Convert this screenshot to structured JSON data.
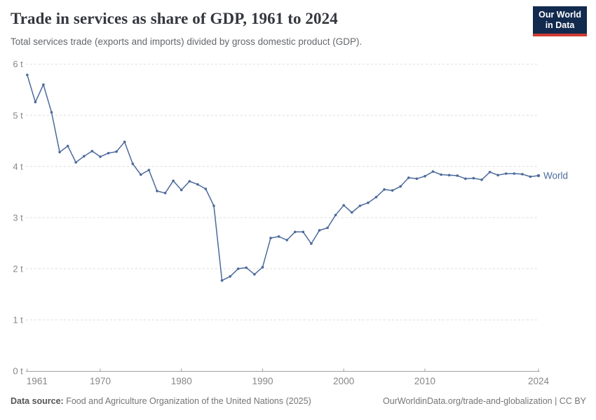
{
  "header": {
    "title": "Trade in services as share of GDP, 1961 to 2024",
    "subtitle": "Total services trade (exports and imports) divided by gross domestic product (GDP).",
    "logo_line1": "Our World",
    "logo_line2": "in Data"
  },
  "footer": {
    "source_label": "Data source:",
    "source_text": "Food and Agriculture Organization of the United Nations (2025)",
    "link_text": "OurWorldinData.org/trade-and-globalization | CC BY"
  },
  "chart_data": {
    "type": "line",
    "title": "Trade in services as share of GDP, 1961 to 2024",
    "xlabel": "",
    "ylabel": "",
    "xlim": [
      1961,
      2024
    ],
    "ylim": [
      0,
      6
    ],
    "grid": "horizontal-dashed",
    "legend_position": "end-of-line",
    "y_suffix": " t",
    "y_ticks": [
      {
        "v": 0,
        "label": "0 t"
      },
      {
        "v": 1,
        "label": "1 t"
      },
      {
        "v": 2,
        "label": "2 t"
      },
      {
        "v": 3,
        "label": "3 t"
      },
      {
        "v": 4,
        "label": "4 t"
      },
      {
        "v": 5,
        "label": "5 t"
      },
      {
        "v": 6,
        "label": "6 t"
      }
    ],
    "x_ticks": [
      {
        "v": 1961,
        "label": "1961"
      },
      {
        "v": 1970,
        "label": "1970"
      },
      {
        "v": 1980,
        "label": "1980"
      },
      {
        "v": 1990,
        "label": "1990"
      },
      {
        "v": 2000,
        "label": "2000"
      },
      {
        "v": 2010,
        "label": "2010"
      },
      {
        "v": 2024,
        "label": "2024"
      }
    ],
    "series": [
      {
        "name": "World",
        "x": [
          1961,
          1962,
          1963,
          1964,
          1965,
          1966,
          1967,
          1968,
          1969,
          1970,
          1971,
          1972,
          1973,
          1974,
          1975,
          1976,
          1977,
          1978,
          1979,
          1980,
          1981,
          1982,
          1983,
          1984,
          1985,
          1986,
          1987,
          1988,
          1989,
          1990,
          1991,
          1992,
          1993,
          1994,
          1995,
          1996,
          1997,
          1998,
          1999,
          2000,
          2001,
          2002,
          2003,
          2004,
          2005,
          2006,
          2007,
          2008,
          2009,
          2010,
          2011,
          2012,
          2013,
          2014,
          2015,
          2016,
          2017,
          2018,
          2019,
          2020,
          2021,
          2022,
          2023,
          2024
        ],
        "values": [
          5.79,
          5.26,
          5.6,
          5.06,
          4.28,
          4.4,
          4.08,
          4.2,
          4.3,
          4.19,
          4.26,
          4.29,
          4.48,
          4.05,
          3.84,
          3.93,
          3.52,
          3.48,
          3.72,
          3.54,
          3.71,
          3.65,
          3.56,
          3.23,
          1.77,
          1.85,
          2.0,
          2.02,
          1.89,
          2.03,
          2.6,
          2.63,
          2.56,
          2.72,
          2.72,
          2.49,
          2.75,
          2.8,
          3.05,
          3.24,
          3.1,
          3.23,
          3.29,
          3.4,
          3.55,
          3.53,
          3.61,
          3.78,
          3.76,
          3.81,
          3.9,
          3.84,
          3.83,
          3.82,
          3.76,
          3.77,
          3.74,
          3.89,
          3.83,
          3.86,
          3.86,
          3.85,
          3.8,
          3.82
        ]
      }
    ],
    "colors": {
      "line": "#4C6A9C",
      "grid": "#dcdcdc",
      "axis": "#a1a1a1",
      "tick_label": "#878787"
    }
  }
}
